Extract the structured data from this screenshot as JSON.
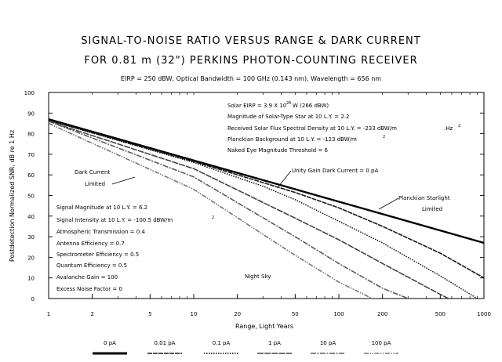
{
  "chart_data": {
    "type": "line",
    "title": "SIGNAL-TO-NOISE RATIO VERSUS RANGE & DARK CURRENT",
    "title_line2": "FOR 0.81 m (32\") PERKINS PHOTON-COUNTING RECEIVER",
    "subtitle": "EIRP = 250 dBW, Optical Bandwidth = 100 GHz (0.143 nm), Wavelength = 656 nm",
    "xlabel": "Range, Light Years",
    "ylabel": "Postdetection Normalized SNR, dB re 1 Hz",
    "x_scale": "log",
    "xlim": [
      1,
      1000
    ],
    "ylim": [
      0,
      100
    ],
    "x_ticks": [
      1,
      2,
      5,
      10,
      20,
      50,
      100,
      200,
      500,
      1000
    ],
    "x_tick_labels": [
      "1",
      "2",
      "5",
      "10",
      "20",
      "50",
      "100",
      "200",
      "500",
      "1000"
    ],
    "y_ticks": [
      0,
      10,
      20,
      30,
      40,
      50,
      60,
      70,
      80,
      90,
      100
    ],
    "y_tick_labels": [
      "0",
      "10",
      "20",
      "30",
      "40",
      "50",
      "60",
      "70",
      "80",
      "90",
      "100"
    ],
    "grid": false,
    "legend_position": "bottom",
    "series": [
      {
        "name": "0 pA",
        "style": "thick-solid",
        "x": [
          1,
          10,
          100,
          1000
        ],
        "y": [
          87,
          67,
          47,
          27
        ]
      },
      {
        "name": "0.01 pA",
        "style": "dashed",
        "x": [
          1,
          10,
          50,
          100,
          200,
          500,
          1000
        ],
        "y": [
          86.5,
          66.5,
          51.5,
          44,
          35,
          22,
          10
        ]
      },
      {
        "name": "0.1 pA",
        "style": "dotted",
        "x": [
          1,
          10,
          30,
          50,
          100,
          200,
          500,
          900
        ],
        "y": [
          86.5,
          66,
          54.5,
          48,
          37.5,
          27,
          11,
          0
        ]
      },
      {
        "name": "1 pA",
        "style": "long-dash",
        "x": [
          1,
          10,
          50,
          100,
          200,
          500,
          570
        ],
        "y": [
          86,
          63,
          39,
          28.5,
          17,
          2,
          0
        ]
      },
      {
        "name": "10 pA",
        "style": "dash-dot",
        "x": [
          1,
          10,
          50,
          100,
          200,
          300
        ],
        "y": [
          86,
          59,
          30,
          17,
          5,
          0
        ]
      },
      {
        "name": "100 pA",
        "style": "dash-dot-dot",
        "x": [
          1,
          10,
          50,
          100,
          170
        ],
        "y": [
          85,
          53,
          21,
          8,
          0
        ]
      }
    ],
    "annotations": {
      "solar_eirp": "Solar EIRP = 3.9 X 10",
      "solar_eirp_exp": "26",
      "solar_eirp_tail": "W (266 dBW)",
      "solar_mag": "Magnitude of Solar-Type Star at 10 L.Y. = 2.2",
      "solar_flux": "Received Solar Flux Spectral Density at 10 L.Y. = -233 dBW/m",
      "solar_flux_sup": "2",
      "solar_flux_tail": ".Hz",
      "planckian_bg": "Planckian Background at 10 L.Y. = -123 dBW/m",
      "planckian_bg_sup": "2",
      "naked_eye": "Naked Eye Magnitude Threshold = 6",
      "unity_gain": "Unity Gain Dark Current = 0 pA",
      "dark_current_1": "Dark Current",
      "dark_current_2": "Limited",
      "planckian_starlight_1": "Planckian Starlight",
      "planckian_starlight_2": "Limited",
      "signal_mag": "Signal Magnitude at 10 L.Y. = 6.2",
      "signal_int": "Signal Intensity at 10 L.Y. = -100.5 dBW/m",
      "signal_int_sup": "2",
      "atmos": "Atmospheric Transmission = 0.4",
      "antenna": "Antenna Efficiency = 0.7",
      "spectrometer": "Spectrometer Efficiency = 0.5",
      "quantum": "Quantum Efficiency = 0.5",
      "avalanche": "Avalanche Gain = 100",
      "excess": "Excess Noise Factor = 0",
      "night_sky": "Night Sky"
    }
  }
}
